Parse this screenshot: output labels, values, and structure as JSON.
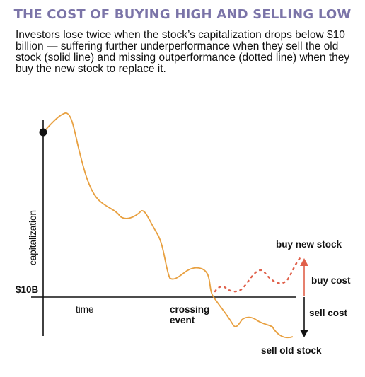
{
  "title": "THE COST OF BUYING HIGH AND SELLING LOW",
  "description": "Investors lose twice when the stock’s capitalization drops below $10 billion — suffering further underperformance when they sell the old stock (solid line) and missing outperformance (dotted line) when they buy the new stock to replace it.",
  "axes": {
    "y_label": "capitalization",
    "x_label": "time",
    "threshold_label": "$10B"
  },
  "annotations": {
    "crossing_line1": "crossing",
    "crossing_line2": "event",
    "buy_new_stock": "buy new stock",
    "buy_cost": "buy cost",
    "sell_cost": "sell cost",
    "sell_old_stock": "sell old stock"
  },
  "colors": {
    "title": "#7b74a8",
    "old_stock_line": "#e8a040",
    "new_stock_dots": "#e0604a",
    "buy_arrow": "#e0604a",
    "axis": "#111111"
  }
}
